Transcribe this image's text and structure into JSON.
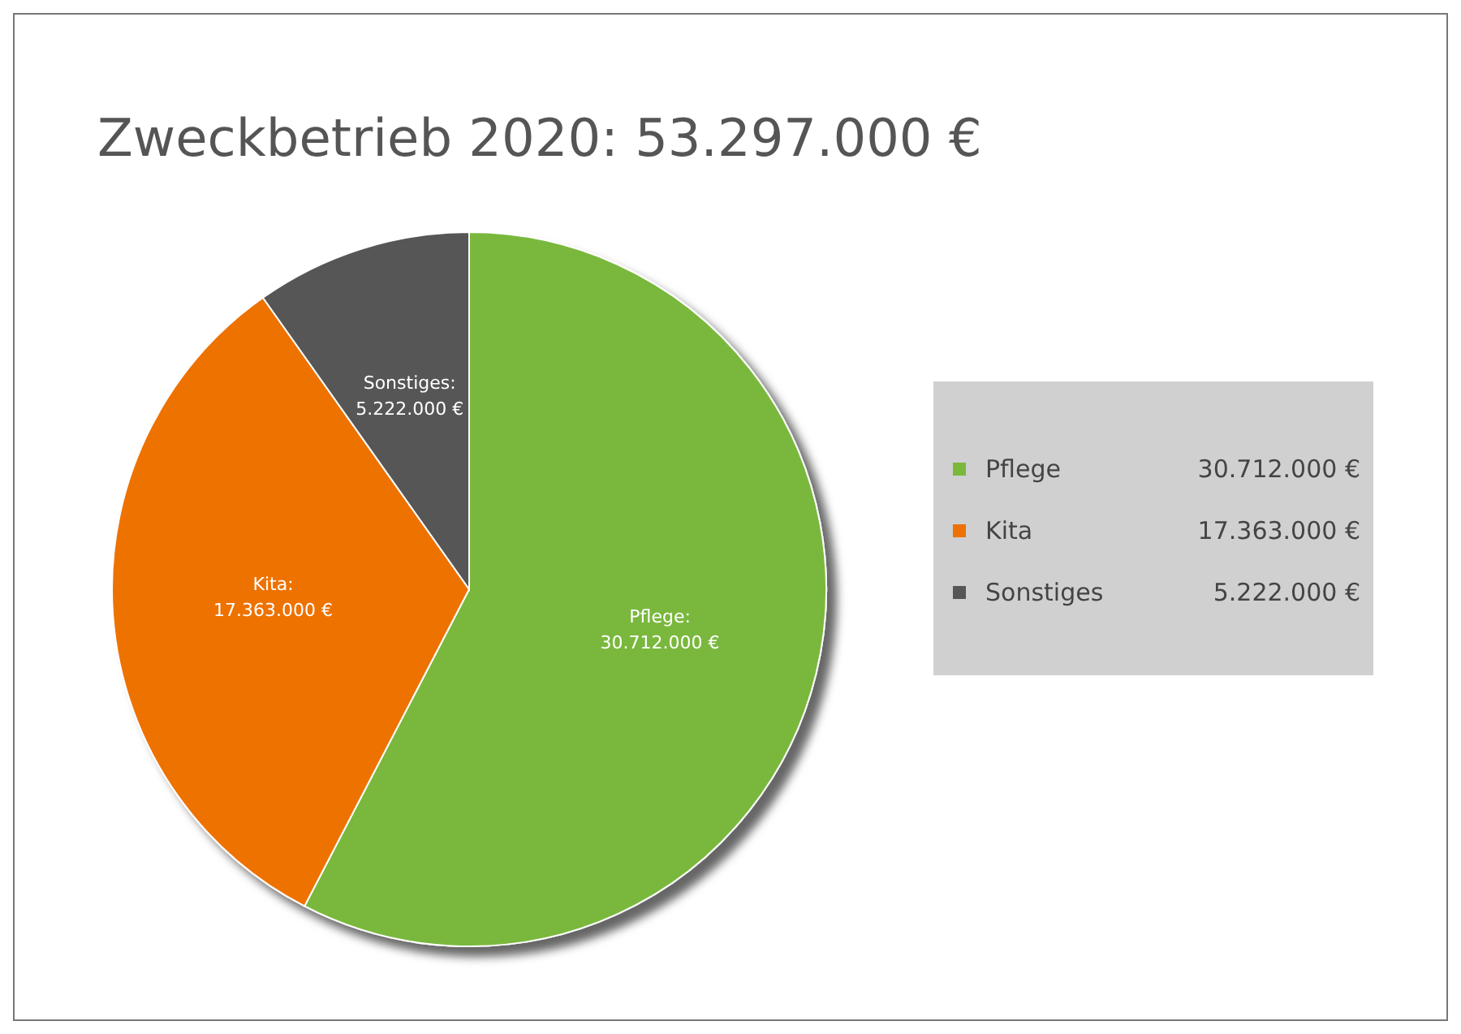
{
  "chart_data": {
    "type": "pie",
    "title": "Zweckbetrieb 2020: 53.297.000 €",
    "categories": [
      "Pflege",
      "Kita",
      "Sonstiges"
    ],
    "values": [
      30712000,
      17363000,
      5222000
    ],
    "value_labels": [
      "30.712.000 €",
      "17.363.000 €",
      "5.222.000 €"
    ],
    "colors": [
      "#7ab83c",
      "#ee7203",
      "#575656"
    ],
    "legend": "right",
    "annotations": [
      "Pflege:",
      "Kita:",
      "Sonstiges:"
    ]
  }
}
